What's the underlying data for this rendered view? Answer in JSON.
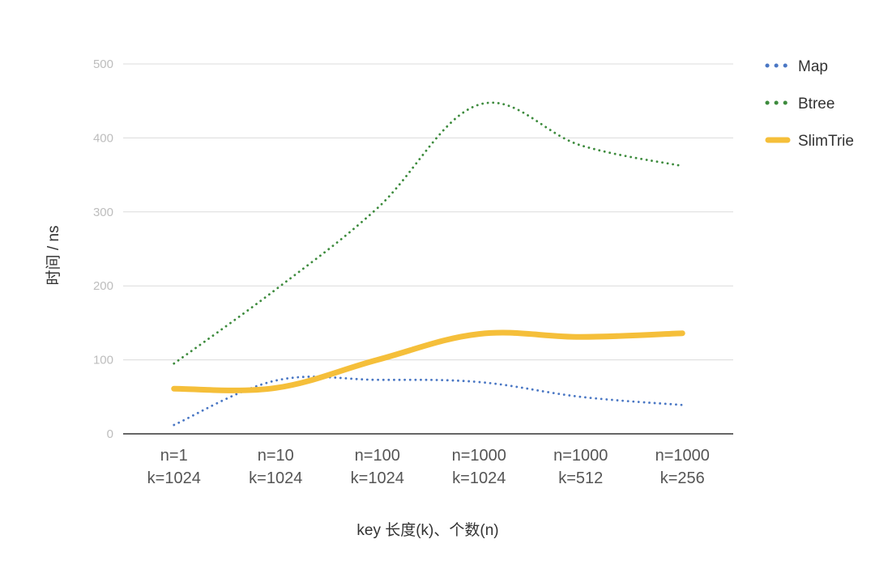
{
  "chart_data": {
    "type": "line",
    "title": "",
    "xlabel": "key 长度(k)、个数(n)",
    "ylabel": "时间 / ns",
    "ylim": [
      0,
      500
    ],
    "yticks": [
      "0",
      "100",
      "200",
      "300",
      "400",
      "500"
    ],
    "grid": true,
    "legend_position": "right",
    "categories": [
      [
        "n=1",
        "k=1024"
      ],
      [
        "n=10",
        "k=1024"
      ],
      [
        "n=100",
        "k=1024"
      ],
      [
        "n=1000",
        "k=1024"
      ],
      [
        "n=1000",
        "k=512"
      ],
      [
        "n=1000",
        "k=256"
      ]
    ],
    "series": [
      {
        "name": "Map",
        "values": [
          12,
          72,
          73,
          70,
          50,
          39
        ],
        "color": "#4a77c4",
        "style": "dotted"
      },
      {
        "name": "Btree",
        "values": [
          95,
          195,
          305,
          445,
          390,
          362
        ],
        "color": "#3d8b3d",
        "style": "dotted"
      },
      {
        "name": "SlimTrie",
        "values": [
          61,
          62,
          100,
          135,
          131,
          136
        ],
        "color": "#f5bf3a",
        "style": "solid"
      }
    ]
  }
}
